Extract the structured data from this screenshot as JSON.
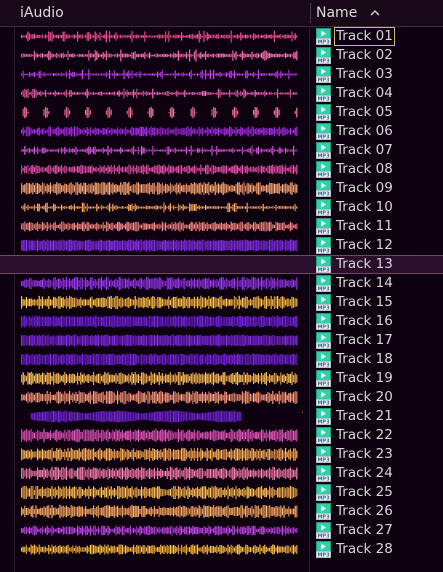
{
  "header": {
    "wave_column": "iAudio",
    "name_column": "Name",
    "sort_icon": "chevron-up-icon"
  },
  "tracks": [
    {
      "name": "Track 01",
      "icon": "mp3-file-icon",
      "badge": "MP3",
      "color": "#f04c8c",
      "density": "spiky",
      "focused": true
    },
    {
      "name": "Track 02",
      "icon": "mp3-file-icon",
      "badge": "MP3",
      "color": "#f06aa0",
      "density": "spiky"
    },
    {
      "name": "Track 03",
      "icon": "mp3-file-icon",
      "badge": "MP3",
      "color": "#b43ae6",
      "density": "sparse"
    },
    {
      "name": "Track 04",
      "icon": "mp3-file-icon",
      "badge": "MP3",
      "color": "#e05aa8",
      "density": "sparse"
    },
    {
      "name": "Track 05",
      "icon": "mp3-file-icon",
      "badge": "MP3",
      "color": "#e7698e",
      "density": "pulses"
    },
    {
      "name": "Track 06",
      "icon": "mp3-file-icon",
      "badge": "MP3",
      "color": "#9a28d8",
      "density": "medium"
    },
    {
      "name": "Track 07",
      "icon": "mp3-file-icon",
      "badge": "MP3",
      "color": "#c64ad0",
      "density": "sparse"
    },
    {
      "name": "Track 08",
      "icon": "mp3-file-icon",
      "badge": "MP3",
      "color": "#d0489a",
      "density": "medium"
    },
    {
      "name": "Track 09",
      "icon": "mp3-file-icon",
      "badge": "MP3",
      "color": "#f59a6a",
      "density": "dense"
    },
    {
      "name": "Track 10",
      "icon": "mp3-file-icon",
      "badge": "MP3",
      "color": "#f29a58",
      "density": "sparse"
    },
    {
      "name": "Track 11",
      "icon": "mp3-file-icon",
      "badge": "MP3",
      "color": "#ec7d7a",
      "density": "medium"
    },
    {
      "name": "Track 12",
      "icon": "mp3-file-icon",
      "badge": "MP3",
      "color": "#7a2ad8",
      "density": "solid"
    },
    {
      "name": "Track 13",
      "icon": "mp3-file-icon",
      "badge": "MP3",
      "color": "#f07a88",
      "density": "dense",
      "selected": true
    },
    {
      "name": "Track 14",
      "icon": "mp3-file-icon",
      "badge": "MP3",
      "color": "#8a32dc",
      "density": "dense"
    },
    {
      "name": "Track 15",
      "icon": "mp3-file-icon",
      "badge": "MP3",
      "color": "#f6b040",
      "density": "dense"
    },
    {
      "name": "Track 16",
      "icon": "mp3-file-icon",
      "badge": "MP3",
      "color": "#6a1ed0",
      "density": "solid"
    },
    {
      "name": "Track 17",
      "icon": "mp3-file-icon",
      "badge": "MP3",
      "color": "#7626d2",
      "density": "solid"
    },
    {
      "name": "Track 18",
      "icon": "mp3-file-icon",
      "badge": "MP3",
      "color": "#6c20cc",
      "density": "solid"
    },
    {
      "name": "Track 19",
      "icon": "mp3-file-icon",
      "badge": "MP3",
      "color": "#f7b250",
      "density": "dense"
    },
    {
      "name": "Track 20",
      "icon": "mp3-file-icon",
      "badge": "MP3",
      "color": "#f08c70",
      "density": "dense"
    },
    {
      "name": "Track 21",
      "icon": "mp3-file-icon",
      "badge": "MP3",
      "color": "#6a22cc",
      "density": "blob"
    },
    {
      "name": "Track 22",
      "icon": "mp3-file-icon",
      "badge": "MP3",
      "color": "#d24cae",
      "density": "dense"
    },
    {
      "name": "Track 23",
      "icon": "mp3-file-icon",
      "badge": "MP3",
      "color": "#f3a24e",
      "density": "dense"
    },
    {
      "name": "Track 24",
      "icon": "mp3-file-icon",
      "badge": "MP3",
      "color": "#e872a0",
      "density": "dense"
    },
    {
      "name": "Track 25",
      "icon": "mp3-file-icon",
      "badge": "MP3",
      "color": "#f6ae4a",
      "density": "dense"
    },
    {
      "name": "Track 26",
      "icon": "mp3-file-icon",
      "badge": "MP3",
      "color": "#f4a05c",
      "density": "dense"
    },
    {
      "name": "Track 27",
      "icon": "mp3-file-icon",
      "badge": "MP3",
      "color": "#b23ed8",
      "density": "medium"
    },
    {
      "name": "Track 28",
      "icon": "mp3-file-icon",
      "badge": "MP3",
      "color": "#f8b238",
      "density": "medium"
    }
  ],
  "colors": {
    "background": "#0e0210",
    "header_background": "#180818",
    "selection": "#2c0f2c",
    "icon_teal": "#2fd0a8",
    "text": "#d6d6d6"
  }
}
